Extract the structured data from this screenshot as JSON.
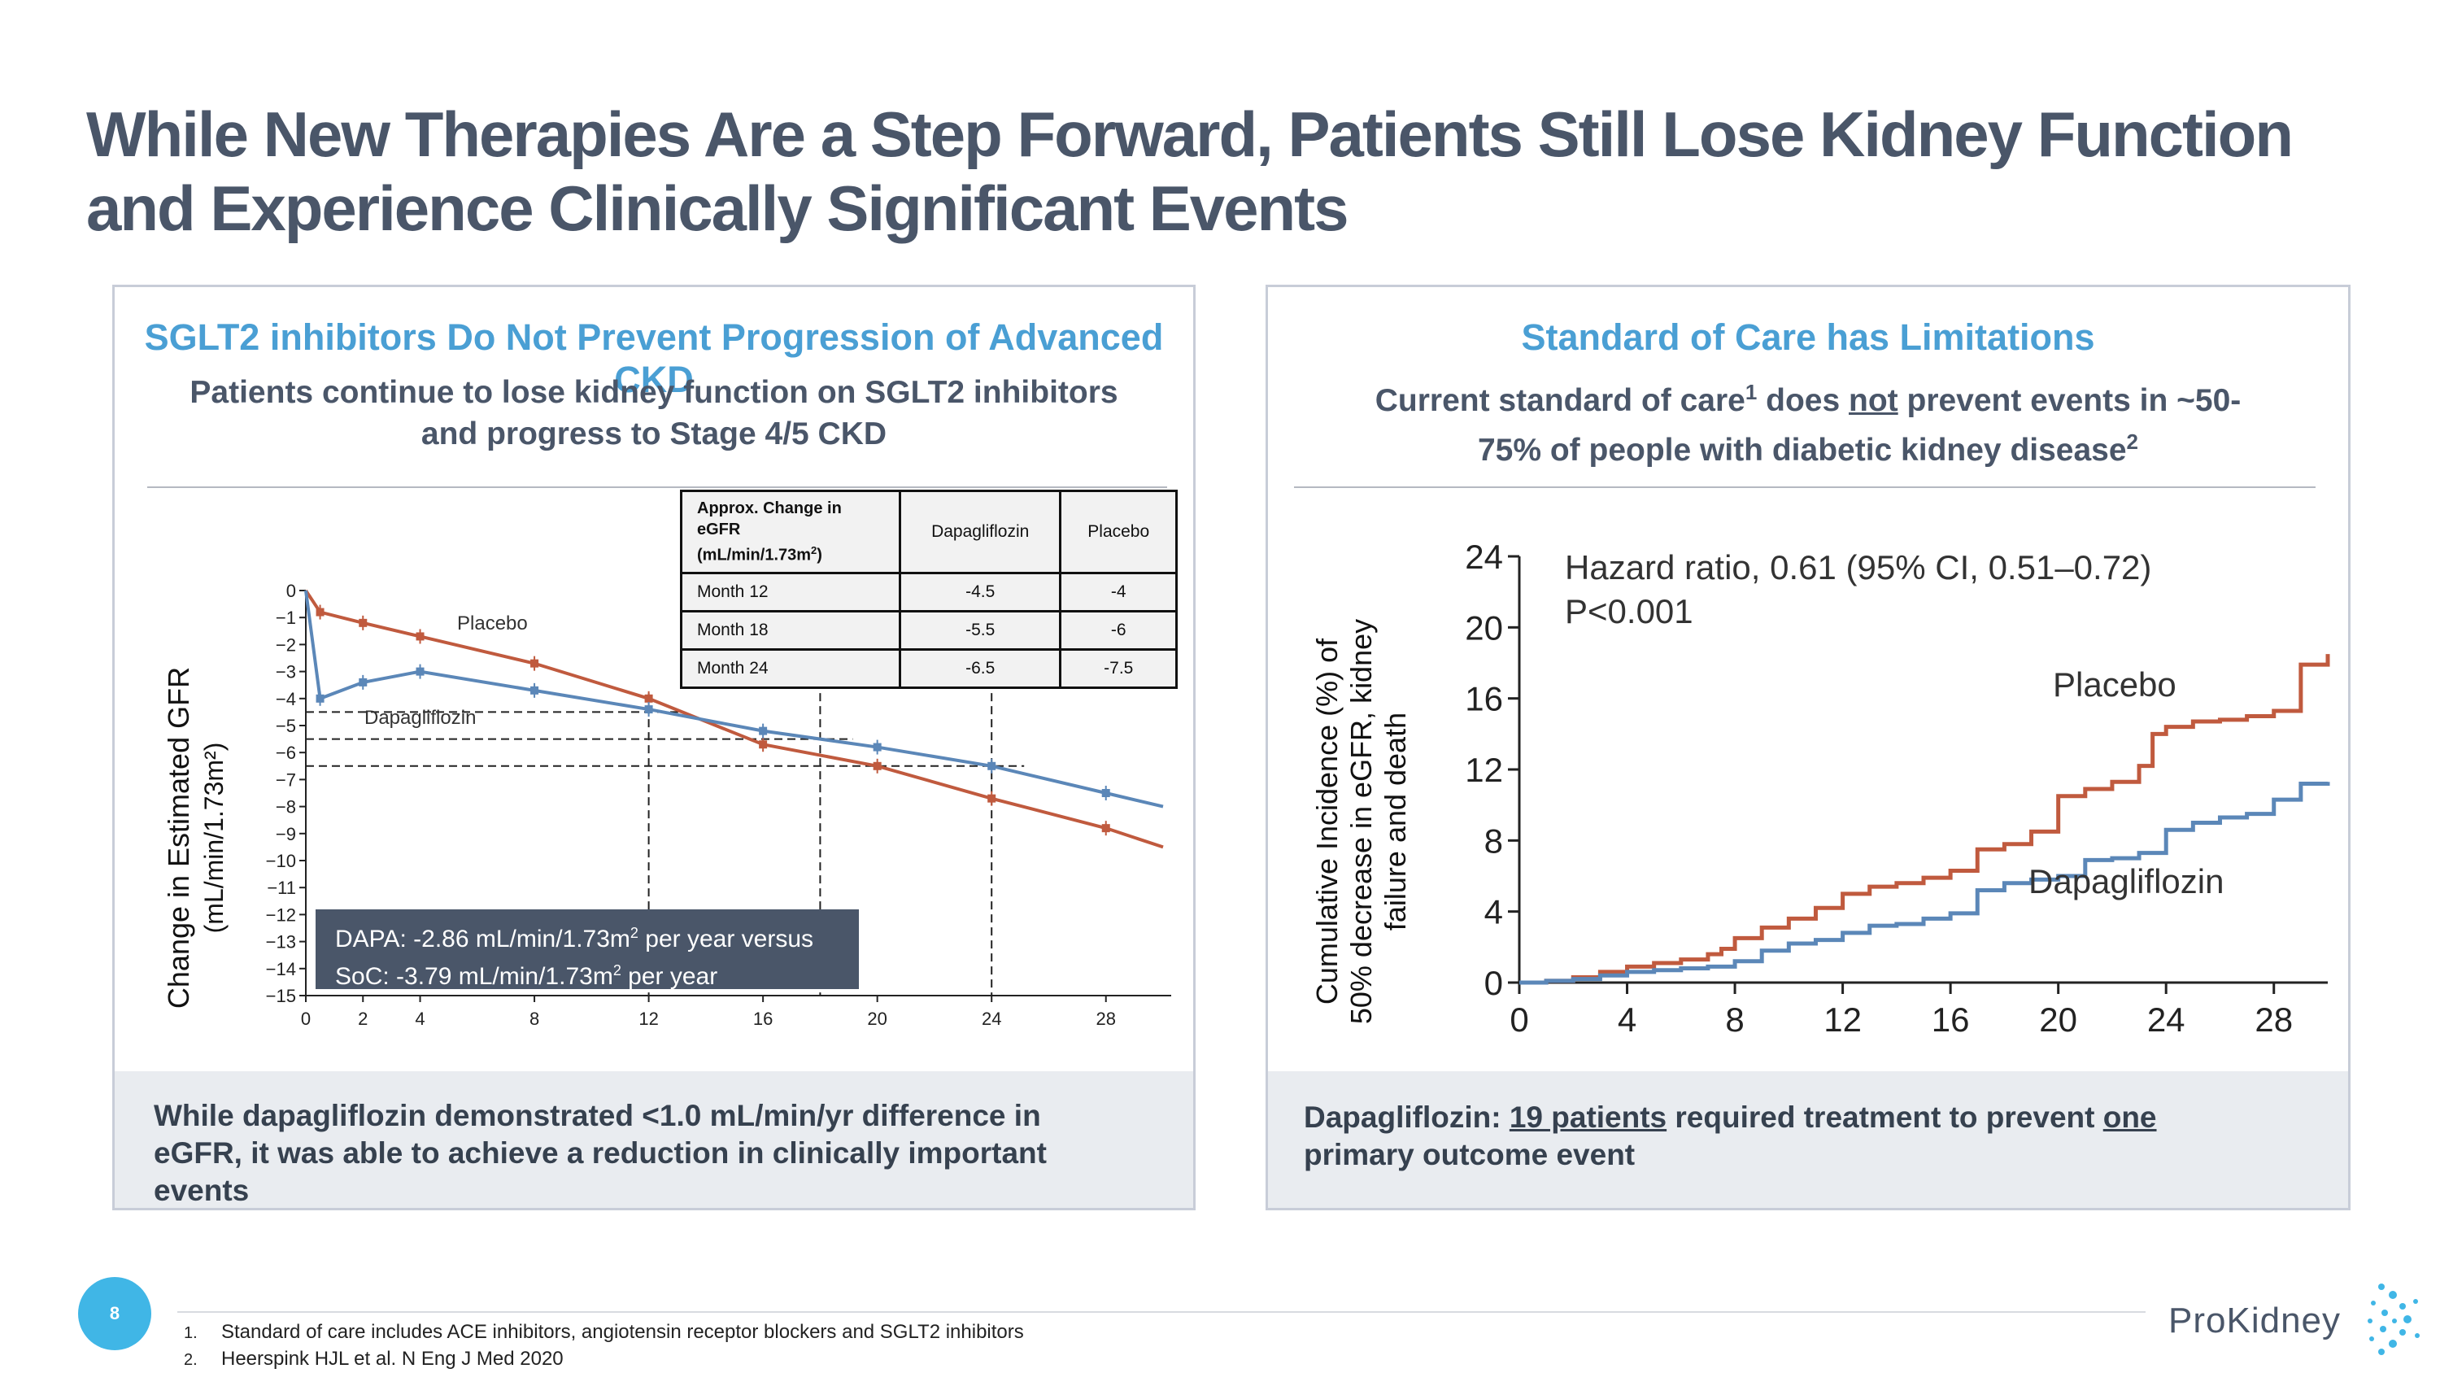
{
  "slide": {
    "title_line1": "While New Therapies Are a Step Forward, Patients Still Lose Kidney Function",
    "title_line2": "and Experience Clinically Significant Events",
    "page_number": "8"
  },
  "left_panel": {
    "heading_line1": "SGLT2 inhibitors Do Not Prevent Progression of Advanced",
    "heading_line2": "CKD",
    "sub_line1": "Patients continue to lose kidney function on SGLT2 inhibitors",
    "sub_line2": "and progress to Stage 4/5 CKD",
    "footer_line1": "While dapagliflozin demonstrated <1.0 mL/min/yr difference in",
    "footer_line2": "eGFR, it was able to achieve a reduction in clinically important",
    "footer_line3": "events",
    "callout": {
      "line1_a": "DAPA: -2.86 mL/min/1.73m",
      "line1_sup": "2",
      "line1_b": " per year versus",
      "line2_a": "SoC: -3.79 mL/min/1.73m",
      "line2_sup": "2",
      "line2_b": " per year"
    },
    "table": {
      "header_first_a": "Approx. Change in",
      "header_first_b": "eGFR",
      "header_first_c": "(mL/min/1.73m",
      "header_first_sup": "2",
      "header_first_d": ")",
      "header_dapa": "Dapagliflozin",
      "header_placebo": "Placebo",
      "rows": [
        {
          "label": "Month 12",
          "dapa": "-4.5",
          "placebo": "-4"
        },
        {
          "label": "Month 18",
          "dapa": "-5.5",
          "placebo": "-6"
        },
        {
          "label": "Month 24",
          "dapa": "-6.5",
          "placebo": "-7.5"
        }
      ]
    }
  },
  "right_panel": {
    "heading": "Standard of Care has Limitations",
    "sub_a": "Current standard of care",
    "sub_sup1": "1",
    "sub_b": " does ",
    "sub_not": "not",
    "sub_c": " prevent events in ~50-",
    "sub_line2": "75% of people with diabetic kidney disease",
    "sub_sup2": "2",
    "footer_a": "Dapagliflozin: ",
    "footer_b": "19 patients",
    "footer_c": " required treatment to prevent ",
    "footer_d": "one",
    "footer_line2": "primary outcome event"
  },
  "footnotes": [
    {
      "num": "1.",
      "text": "Standard of care includes ACE inhibitors, angiotensin receptor blockers and SGLT2 inhibitors"
    },
    {
      "num": "2.",
      "text": "Heerspink HJL et al. N Eng J Med 2020"
    }
  ],
  "logo": {
    "text": "ProKidney"
  },
  "colors": {
    "placebo": "#c05a3e",
    "dapagliflozin": "#5b87b8",
    "heading_blue": "#4a9fd4",
    "dark": "#4a5669"
  },
  "chart_data": [
    {
      "type": "line",
      "title": "",
      "ylabel_line1": "Change in Estimated GFR",
      "ylabel_line2": "(mL/min/1.73m²)",
      "xlabel": "",
      "xlim": [
        0,
        30
      ],
      "ylim": [
        -15,
        0
      ],
      "xticks": [
        "0",
        "2",
        "4",
        "8",
        "12",
        "16",
        "20",
        "24",
        "28"
      ],
      "yticks": [
        "0",
        "−1",
        "−2",
        "−3",
        "−4",
        "−5",
        "−6",
        "−7",
        "−8",
        "−9",
        "−10",
        "−11",
        "−12",
        "−13",
        "−14",
        "−15"
      ],
      "series": [
        {
          "name": "Placebo",
          "color": "#c05a3e",
          "x": [
            0,
            0.5,
            2,
            4,
            8,
            12,
            16,
            20,
            24,
            28,
            30
          ],
          "y": [
            0,
            -0.8,
            -1.2,
            -1.7,
            -2.7,
            -4.0,
            -5.7,
            -6.5,
            -7.7,
            -8.8,
            -9.5
          ]
        },
        {
          "name": "Dapagliflozin",
          "color": "#5b87b8",
          "x": [
            0,
            0.5,
            2,
            4,
            8,
            12,
            16,
            20,
            24,
            28,
            30
          ],
          "y": [
            0,
            -4.0,
            -3.4,
            -3.0,
            -3.7,
            -4.4,
            -5.2,
            -5.8,
            -6.5,
            -7.5,
            -8.0
          ]
        }
      ],
      "reference_x": [
        12,
        18,
        24
      ],
      "reference_y": [
        -4.5,
        -5.5,
        -6.5
      ]
    },
    {
      "type": "line",
      "title": "",
      "annotation_line1": "Hazard ratio, 0.61 (95% CI, 0.51–0.72)",
      "annotation_line2": "P<0.001",
      "ylabel_line1": "Cumulative Incidence (%) of",
      "ylabel_line2": "50% decrease in eGFR, kidney",
      "ylabel_line3": "failure and death",
      "xlim": [
        0,
        30
      ],
      "ylim": [
        0,
        24
      ],
      "xticks": [
        "0",
        "4",
        "8",
        "12",
        "16",
        "20",
        "24",
        "28"
      ],
      "yticks": [
        "0",
        "4",
        "8",
        "12",
        "16",
        "20",
        "24"
      ],
      "series": [
        {
          "name": "Placebo",
          "color": "#c05a3e",
          "x": [
            0,
            1,
            2,
            3,
            4,
            5,
            6,
            7,
            7.5,
            8,
            9,
            10,
            11,
            12,
            13,
            14,
            15,
            16,
            17,
            18,
            19,
            20,
            21,
            22,
            23,
            23.5,
            24,
            25,
            26,
            27,
            28,
            29,
            30
          ],
          "y": [
            0,
            0.1,
            0.3,
            0.6,
            0.9,
            1.1,
            1.3,
            1.6,
            1.9,
            2.5,
            3.1,
            3.6,
            4.2,
            5.0,
            5.4,
            5.6,
            5.9,
            6.3,
            7.5,
            7.8,
            8.5,
            10.5,
            10.9,
            11.3,
            12.2,
            14.0,
            14.4,
            14.7,
            14.8,
            15.0,
            15.3,
            17.9,
            18.5
          ]
        },
        {
          "name": "Dapagliflozin",
          "color": "#5b87b8",
          "x": [
            0,
            1,
            2,
            3,
            4,
            5,
            6,
            7,
            8,
            9,
            10,
            11,
            12,
            13,
            14,
            15,
            16,
            17,
            18,
            19,
            20,
            21,
            22,
            23,
            24,
            25,
            26,
            27,
            28,
            29,
            30
          ],
          "y": [
            0,
            0.1,
            0.2,
            0.4,
            0.6,
            0.7,
            0.8,
            0.9,
            1.2,
            1.8,
            2.2,
            2.4,
            2.8,
            3.2,
            3.3,
            3.6,
            3.9,
            5.2,
            5.6,
            5.8,
            6.0,
            6.9,
            7.0,
            7.3,
            8.6,
            9.0,
            9.3,
            9.5,
            10.3,
            11.2,
            11.3
          ]
        }
      ]
    }
  ]
}
